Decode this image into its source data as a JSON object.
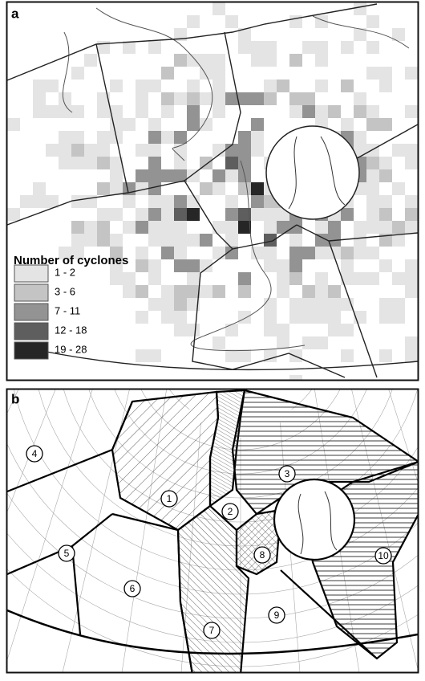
{
  "panel_a": {
    "label": "a",
    "legend": {
      "title": "Number of cyclones",
      "items": [
        {
          "label": "1 - 2",
          "color": "#e4e4e4"
        },
        {
          "label": "3 - 6",
          "color": "#c4c4c4"
        },
        {
          "label": "7 - 11",
          "color": "#939393"
        },
        {
          "label": "12 - 18",
          "color": "#5e5e5e"
        },
        {
          "label": "19 - 28",
          "color": "#262626"
        }
      ]
    }
  },
  "panel_b": {
    "label": "b",
    "regions": [
      {
        "label": "1"
      },
      {
        "label": "2"
      },
      {
        "label": "3"
      },
      {
        "label": "4"
      },
      {
        "label": "5"
      },
      {
        "label": "6"
      },
      {
        "label": "7"
      },
      {
        "label": "8"
      },
      {
        "label": "9"
      },
      {
        "label": "10"
      }
    ]
  }
}
